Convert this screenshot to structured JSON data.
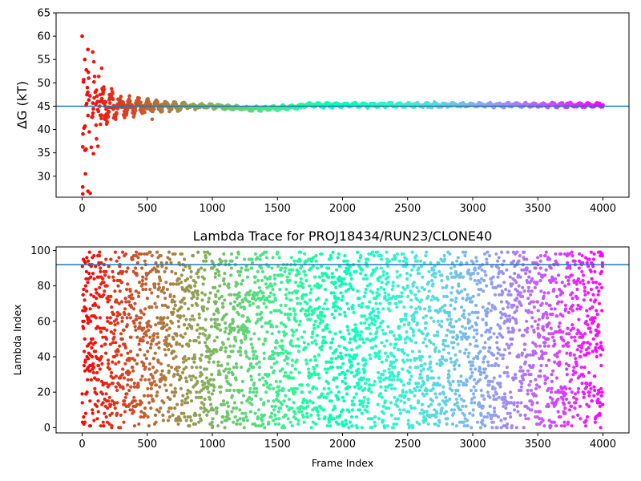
{
  "chart_data": [
    {
      "type": "scatter",
      "title": "",
      "xlabel": "",
      "ylabel": "ΔG (kT)",
      "xlim": [
        -200,
        4200
      ],
      "ylim": [
        25.5,
        65
      ],
      "xticks": [
        0,
        500,
        1000,
        1500,
        2000,
        2500,
        3000,
        3500,
        4000
      ],
      "yticks": [
        30,
        35,
        40,
        45,
        50,
        55,
        60,
        65
      ],
      "hline": 45,
      "colormap": "rainbow",
      "grid": false,
      "description": "Running free-energy estimate per frame; scatter widely between ~26 and 60 kT for early frames (<150), converging to ~45 kT by frame ~800 and staying near 45 through frame 4000",
      "series": [
        {
          "name": "",
          "points": [
            [
              0,
              60.0
            ],
            [
              5,
              26.2
            ],
            [
              10,
              50.2
            ],
            [
              15,
              40.3
            ],
            [
              20,
              55.0
            ],
            [
              25,
              30.5
            ],
            [
              30,
              35.8
            ],
            [
              35,
              45.6
            ],
            [
              40,
              49.0
            ],
            [
              45,
              43.0
            ],
            [
              50,
              51.0
            ],
            [
              55,
              39.5
            ],
            [
              60,
              47.2
            ],
            [
              70,
              36.2
            ],
            [
              80,
              42.8
            ],
            [
              90,
              54.5
            ],
            [
              100,
              48.0
            ],
            [
              110,
              38.0
            ],
            [
              120,
              46.0
            ],
            [
              140,
              47.5
            ],
            [
              160,
              44.0
            ],
            [
              180,
              46.8
            ],
            [
              200,
              45.2
            ],
            [
              250,
              45.5
            ],
            [
              300,
              44.8
            ],
            [
              400,
              45.3
            ],
            [
              500,
              45.0
            ],
            [
              600,
              44.9
            ],
            [
              800,
              45.2
            ],
            [
              1000,
              45.0
            ],
            [
              1200,
              44.6
            ],
            [
              1500,
              44.9
            ],
            [
              2000,
              45.1
            ],
            [
              2500,
              45.2
            ],
            [
              3000,
              45.2
            ],
            [
              3500,
              45.3
            ],
            [
              4000,
              45.3
            ]
          ]
        }
      ]
    },
    {
      "type": "scatter",
      "title": "Lambda Trace for PROJ18434/RUN23/CLONE40",
      "xlabel": "Frame Index",
      "ylabel": "Lambda Index",
      "xlim": [
        -200,
        4200
      ],
      "ylim": [
        -3,
        102
      ],
      "xticks": [
        0,
        500,
        1000,
        1500,
        2000,
        2500,
        3000,
        3500,
        4000
      ],
      "yticks": [
        0,
        20,
        40,
        60,
        80,
        100
      ],
      "hline": 92,
      "colormap": "rainbow",
      "grid": false,
      "description": "Lambda index visited at each of ~4000 frames, uniformly spread between 0 and 99",
      "series": [
        {
          "name": "",
          "frames": 4000,
          "lambda_range": [
            0,
            99
          ]
        }
      ]
    }
  ]
}
